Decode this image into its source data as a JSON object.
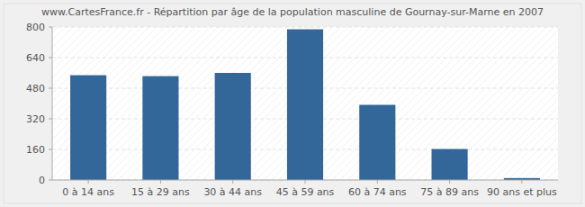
{
  "chart_data": {
    "type": "bar",
    "title": "www.CartesFrance.fr - Répartition par âge de la population masculine de Gournay-sur-Marne en 2007",
    "categories": [
      "0 à 14 ans",
      "15 à 29 ans",
      "30 à 44 ans",
      "45 à 59 ans",
      "60 à 74 ans",
      "75 à 89 ans",
      "90 ans et plus"
    ],
    "values": [
      548,
      543,
      560,
      788,
      393,
      162,
      10
    ],
    "color": "#336699",
    "ylim": [
      0,
      800
    ],
    "yticks": [
      0,
      160,
      320,
      480,
      640,
      800
    ],
    "grid": true
  }
}
